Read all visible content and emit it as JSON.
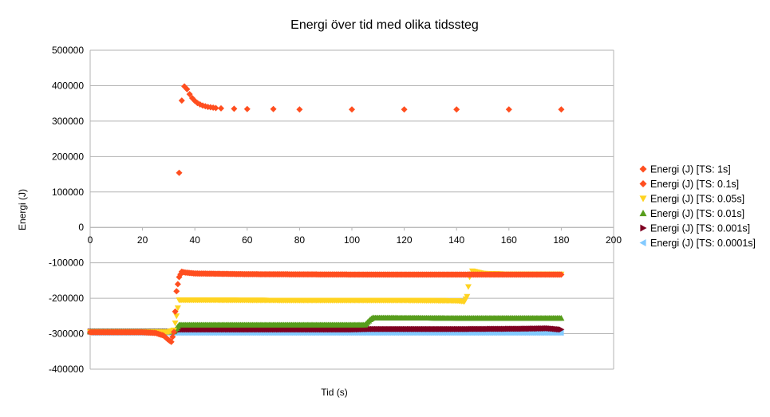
{
  "chart_data": {
    "type": "scatter",
    "title": "Energi över tid med olika tidssteg",
    "xlabel": "Tid (s)",
    "ylabel": "Energi (J)",
    "xlim": [
      0,
      200
    ],
    "ylim": [
      -400000,
      500000
    ],
    "xticks": [
      0,
      20,
      40,
      60,
      80,
      100,
      120,
      140,
      160,
      180,
      200
    ],
    "yticks": [
      500000,
      400000,
      300000,
      200000,
      100000,
      0,
      -100000,
      -200000,
      -300000,
      -400000
    ],
    "grid": "horizontal",
    "legend_position": "right",
    "series": [
      {
        "name": "Energi (J) [TS: 1s]",
        "color": "#ff4e1f",
        "marker": "diamond",
        "points": [
          [
            34,
            154000
          ],
          [
            35,
            358000
          ],
          [
            36,
            398000
          ],
          [
            37,
            390000
          ],
          [
            38,
            376000
          ],
          [
            39,
            365000
          ],
          [
            40,
            357000
          ],
          [
            41,
            351000
          ],
          [
            42,
            347000
          ],
          [
            43,
            344000
          ],
          [
            44,
            342000
          ],
          [
            45,
            340000
          ],
          [
            46,
            339000
          ],
          [
            47,
            338000
          ],
          [
            48,
            337000
          ],
          [
            50,
            336000
          ],
          [
            55,
            335000
          ],
          [
            60,
            334000
          ],
          [
            70,
            334000
          ],
          [
            80,
            333000
          ],
          [
            100,
            333000
          ],
          [
            120,
            333000
          ],
          [
            140,
            333000
          ],
          [
            160,
            333000
          ],
          [
            180,
            333000
          ]
        ]
      },
      {
        "name": "Energi (J) [TS: 0.1s]",
        "color": "#ff4e1f",
        "marker": "diamond",
        "points": [
          [
            0,
            -296000
          ],
          [
            10,
            -296000
          ],
          [
            20,
            -296000
          ],
          [
            25,
            -298000
          ],
          [
            28,
            -305000
          ],
          [
            30,
            -318000
          ],
          [
            31,
            -323000
          ],
          [
            32,
            -295000
          ],
          [
            33,
            -180000
          ],
          [
            34,
            -140000
          ],
          [
            35,
            -125000
          ],
          [
            36,
            -127000
          ],
          [
            40,
            -130000
          ],
          [
            60,
            -132000
          ],
          [
            100,
            -133000
          ],
          [
            140,
            -133000
          ],
          [
            180,
            -133000
          ]
        ]
      },
      {
        "name": "Energi (J) [TS: 0.05s]",
        "color": "#ffd320",
        "marker": "triangle-down",
        "points": [
          [
            0,
            -295000
          ],
          [
            30,
            -295000
          ],
          [
            32,
            -290000
          ],
          [
            33,
            -250000
          ],
          [
            34,
            -205000
          ],
          [
            40,
            -205000
          ],
          [
            80,
            -206000
          ],
          [
            120,
            -206000
          ],
          [
            140,
            -207000
          ],
          [
            143,
            -209000
          ],
          [
            144,
            -195000
          ],
          [
            145,
            -140000
          ],
          [
            146,
            -123000
          ],
          [
            150,
            -130000
          ],
          [
            160,
            -132000
          ],
          [
            180,
            -132000
          ]
        ]
      },
      {
        "name": "Energi (J) [TS: 0.01s]",
        "color": "#579d1c",
        "marker": "triangle-up",
        "points": [
          [
            0,
            -294000
          ],
          [
            32,
            -294000
          ],
          [
            33,
            -285000
          ],
          [
            34,
            -275000
          ],
          [
            40,
            -275000
          ],
          [
            80,
            -275000
          ],
          [
            105,
            -275000
          ],
          [
            107,
            -260000
          ],
          [
            108,
            -255000
          ],
          [
            140,
            -256000
          ],
          [
            180,
            -256000
          ]
        ]
      },
      {
        "name": "Energi (J) [TS: 0.001s]",
        "color": "#7e0021",
        "marker": "triangle-right",
        "points": [
          [
            0,
            -294000
          ],
          [
            33,
            -294000
          ],
          [
            34,
            -288000
          ],
          [
            60,
            -288000
          ],
          [
            100,
            -288000
          ],
          [
            107,
            -287000
          ],
          [
            140,
            -287000
          ],
          [
            165,
            -286000
          ],
          [
            175,
            -285000
          ],
          [
            180,
            -288000
          ]
        ]
      },
      {
        "name": "Energi (J) [TS: 0.0001s]",
        "color": "#83caff",
        "marker": "triangle-left",
        "points": [
          [
            0,
            -297000
          ],
          [
            50,
            -297000
          ],
          [
            100,
            -297000
          ],
          [
            140,
            -297000
          ],
          [
            180,
            -297000
          ]
        ]
      }
    ]
  }
}
